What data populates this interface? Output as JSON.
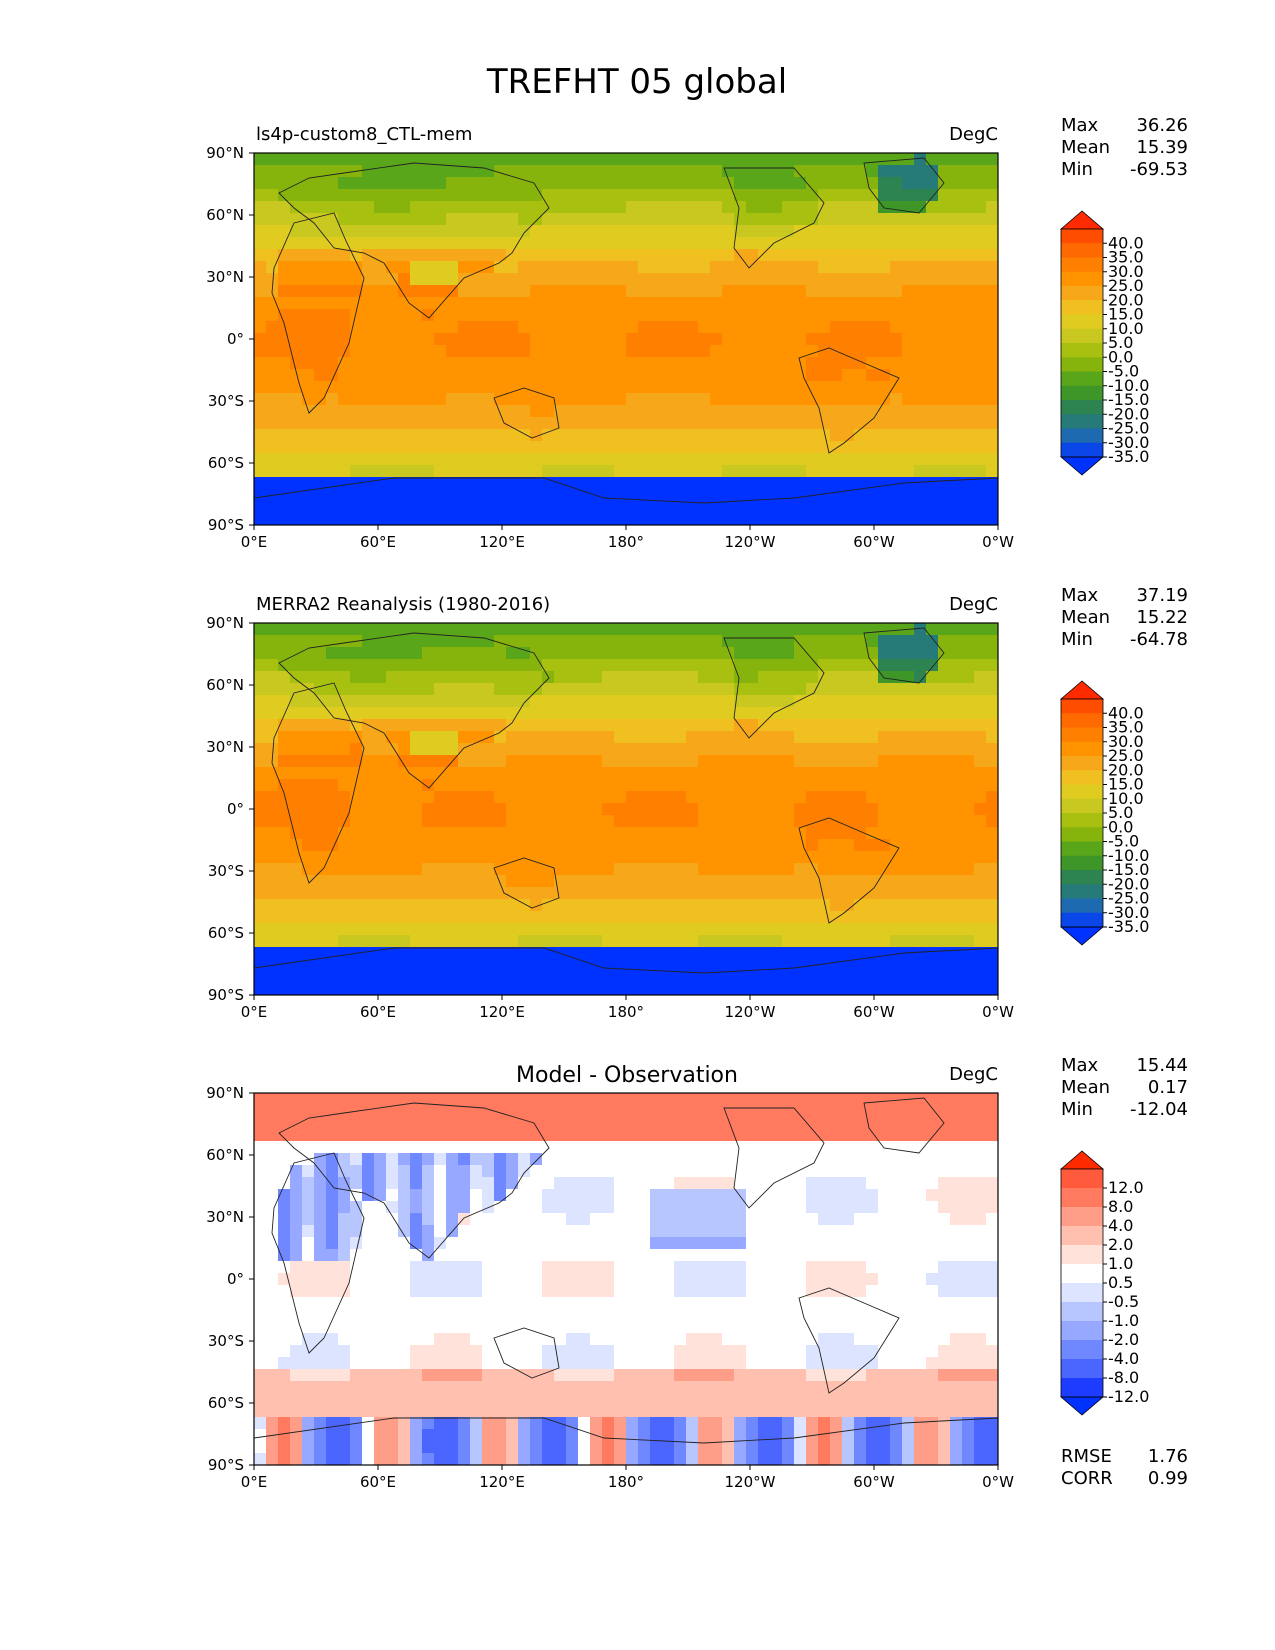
{
  "title": "TREFHT 05 global",
  "chart_data": [
    {
      "type": "heatmap",
      "title": "ls4p-custom8_CTL-mem",
      "units": "DegC",
      "stats": [
        {
          "label": "Max",
          "value": "36.26"
        },
        {
          "label": "Mean",
          "value": "15.39"
        },
        {
          "label": "Min",
          "value": "-69.53"
        }
      ],
      "xticks": [
        "0°E",
        "60°E",
        "120°E",
        "180°",
        "120°W",
        "60°W",
        "0°W"
      ],
      "yticks": [
        "90°N",
        "60°N",
        "30°N",
        "0°",
        "30°S",
        "60°S",
        "90°S"
      ],
      "x_range": [
        0,
        360
      ],
      "y_range": [
        -90,
        90
      ],
      "colorbar_levels": [
        "40.0",
        "35.0",
        "30.0",
        "25.0",
        "20.0",
        "15.0",
        "10.0",
        "5.0",
        "0.0",
        "-5.0",
        "-10.0",
        "-15.0",
        "-20.0",
        "-25.0",
        "-30.0",
        "-35.0"
      ],
      "colorbar_extend": "both"
    },
    {
      "type": "heatmap",
      "title": "MERRA2 Reanalysis (1980-2016)",
      "units": "DegC",
      "stats": [
        {
          "label": "Max",
          "value": "37.19"
        },
        {
          "label": "Mean",
          "value": "15.22"
        },
        {
          "label": "Min",
          "value": "-64.78"
        }
      ],
      "xticks": [
        "0°E",
        "60°E",
        "120°E",
        "180°",
        "120°W",
        "60°W",
        "0°W"
      ],
      "yticks": [
        "90°N",
        "60°N",
        "30°N",
        "0°",
        "30°S",
        "60°S",
        "90°S"
      ],
      "x_range": [
        0,
        360
      ],
      "y_range": [
        -90,
        90
      ],
      "colorbar_levels": [
        "40.0",
        "35.0",
        "30.0",
        "25.0",
        "20.0",
        "15.0",
        "10.0",
        "5.0",
        "0.0",
        "-5.0",
        "-10.0",
        "-15.0",
        "-20.0",
        "-25.0",
        "-30.0",
        "-35.0"
      ],
      "colorbar_extend": "both"
    },
    {
      "type": "heatmap",
      "title": "Model - Observation",
      "units": "DegC",
      "stats": [
        {
          "label": "Max",
          "value": "15.44"
        },
        {
          "label": "Mean",
          "value": "0.17"
        },
        {
          "label": "Min",
          "value": "-12.04"
        }
      ],
      "extra_stats": [
        {
          "label": "RMSE",
          "value": "1.76"
        },
        {
          "label": "CORR",
          "value": "0.99"
        }
      ],
      "xticks": [
        "0°E",
        "60°E",
        "120°E",
        "180°",
        "120°W",
        "60°W",
        "0°W"
      ],
      "yticks": [
        "90°N",
        "60°N",
        "30°N",
        "0°",
        "30°S",
        "60°S",
        "90°S"
      ],
      "x_range": [
        0,
        360
      ],
      "y_range": [
        -90,
        90
      ],
      "colorbar_levels": [
        "12.0",
        "8.0",
        "4.0",
        "2.0",
        "1.0",
        "0.5",
        "-0.5",
        "-1.0",
        "-2.0",
        "-4.0",
        "-8.0",
        "-12.0"
      ],
      "colorbar_extend": "both"
    }
  ],
  "colors": {
    "temp_scale": [
      "#ff2a00",
      "#ff4d00",
      "#ff6a00",
      "#ff8000",
      "#ff9400",
      "#f7a81a",
      "#f0c020",
      "#e0cc20",
      "#c8c820",
      "#a8c010",
      "#86b40c",
      "#5aa61a",
      "#3e9628",
      "#2e8450",
      "#267a78",
      "#1e6ab0",
      "#0a46e8",
      "#0032ff"
    ],
    "diff_scale": [
      "#ff2a00",
      "#ff5a3c",
      "#ff7a5e",
      "#ff9e88",
      "#ffc0b0",
      "#ffe2da",
      "#ffffff",
      "#dce4ff",
      "#b8c6ff",
      "#96a8ff",
      "#7088ff",
      "#4a66ff",
      "#1e3cff",
      "#0032ff"
    ]
  }
}
